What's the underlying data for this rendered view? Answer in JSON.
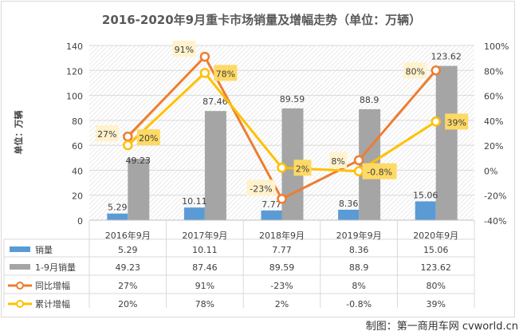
{
  "chart_data": {
    "type": "bar+line",
    "title": "2016-2020年9月重卡市场销量及增幅走势（单位：万辆）",
    "ylabel": "单位：万辆",
    "ylim": [
      0,
      140
    ],
    "y2lim": [
      -40,
      100
    ],
    "yticks": [
      "0",
      "20",
      "40",
      "60",
      "80",
      "100",
      "120",
      "140"
    ],
    "y2ticks": [
      "-40%",
      "-20%",
      "0%",
      "20%",
      "40%",
      "60%",
      "80%",
      "100%"
    ],
    "categories": [
      "2016年9月",
      "2017年9月",
      "2018年9月",
      "2019年9月",
      "2020年9月"
    ],
    "series": [
      {
        "name": "销量",
        "type": "bar",
        "axis": "left",
        "color": "#5b9bd5",
        "values": [
          5.29,
          10.11,
          7.77,
          8.36,
          15.06
        ],
        "labels": [
          "5.29",
          "10.11",
          "7.77",
          "8.36",
          "15.06"
        ]
      },
      {
        "name": "1-9月销量",
        "type": "bar",
        "axis": "left",
        "color": "#a5a5a5",
        "values": [
          49.23,
          87.46,
          89.59,
          88.9,
          123.62
        ],
        "labels": [
          "49.23",
          "87.46",
          "89.59",
          "88.9",
          "123.62"
        ]
      },
      {
        "name": "同比增幅",
        "type": "line",
        "axis": "right",
        "color": "#ed7d31",
        "values": [
          27,
          91,
          -23,
          8,
          80
        ],
        "labels": [
          "27%",
          "91%",
          "-23%",
          "8%",
          "80%"
        ]
      },
      {
        "name": "累计增幅",
        "type": "line",
        "axis": "right",
        "color": "#ffc000",
        "values": [
          20,
          78,
          2,
          -0.8,
          39
        ],
        "labels": [
          "20%",
          "78%",
          "2%",
          "-0.8%",
          "39%"
        ]
      }
    ],
    "grid": true,
    "legend": "data-table-below"
  },
  "credit": "制图：第一商用车网 cvworld.cn"
}
